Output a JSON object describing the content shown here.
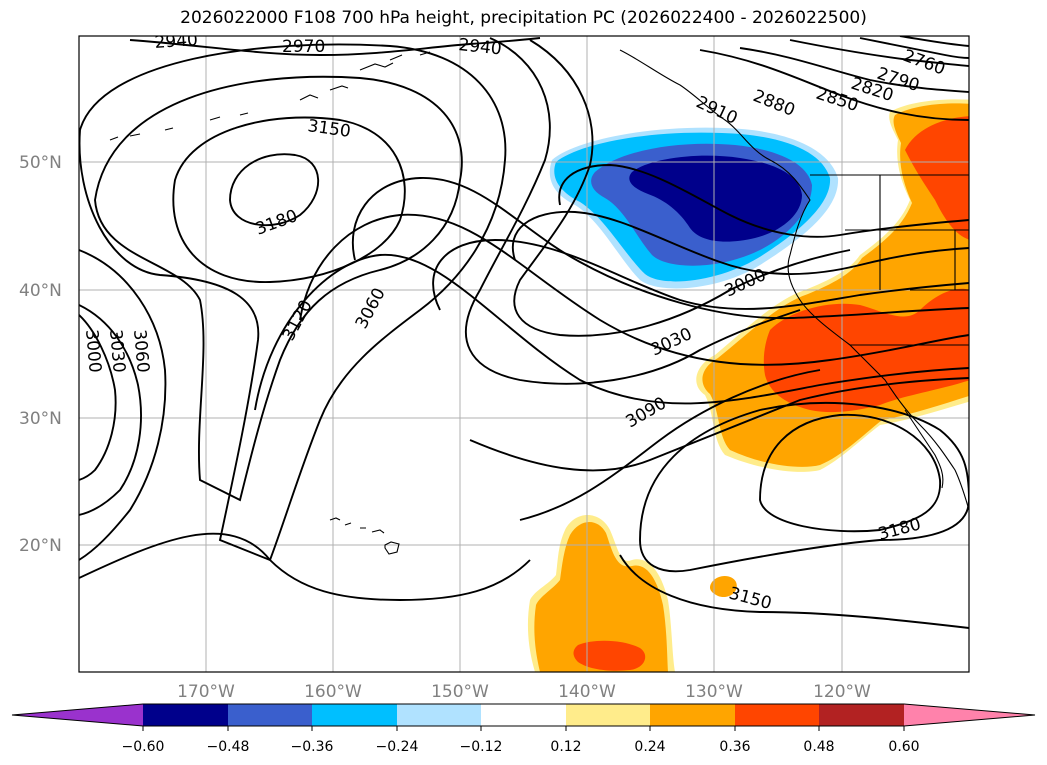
{
  "title": "2026022000 F108 700 hPa height, precipitation PC (2026022400 - 2026022500)",
  "lat_labels": [
    "50°N",
    "40°N",
    "30°N",
    "20°N"
  ],
  "lon_labels": [
    "170°W",
    "160°W",
    "150°W",
    "140°W",
    "130°W",
    "120°W"
  ],
  "colors": {
    "purple": "#9a32cd",
    "navy": "#00008b",
    "royal": "#3a5fcd",
    "sky": "#00bfff",
    "lightblue": "#b0e2ff",
    "white": "#ffffff",
    "lightyellow": "#ffec8b",
    "orange": "#ffa500",
    "redorange": "#ff4500",
    "firebrick": "#b22222",
    "pink": "#ff82ab"
  },
  "colorbar": {
    "ticks": [
      "−0.60",
      "−0.48",
      "−0.36",
      "−0.24",
      "−0.12",
      "0.12",
      "0.24",
      "0.36",
      "0.48",
      "0.60"
    ]
  },
  "contour_labels": {
    "c2940a": "2940",
    "c2970": "2970",
    "c2940b": "2940",
    "c2760": "2760",
    "c2790": "2790",
    "c2820": "2820",
    "c2850": "2850",
    "c2880": "2880",
    "c2910": "2910",
    "c3150a": "3150",
    "c3180a": "3180",
    "c3120": "3120",
    "c3060a": "3060",
    "c3000a": "3000",
    "c3030a": "3030",
    "c3060b": "3060",
    "c3000b": "3000",
    "c3030b": "3030",
    "c3090": "3090",
    "c3180b": "3180",
    "c3150b": "3150"
  }
}
